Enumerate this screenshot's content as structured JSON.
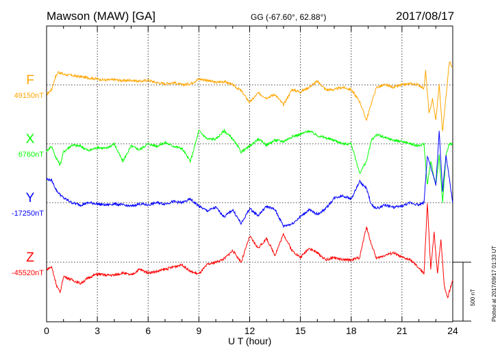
{
  "header": {
    "station": "Mawson (MAW)  [GA]",
    "coords": "GG (-67.60°,  62.88°)",
    "date": "2017/08/17"
  },
  "side_note": "Plotted at 2017/09/17 01:33 UT",
  "scale_label": "500 nT",
  "chart_data": {
    "type": "line",
    "title": "Mawson (MAW)  [GA]",
    "xlabel": "U T (hour)",
    "xlim": [
      0,
      24
    ],
    "xticks": [
      "0",
      "3",
      "6",
      "9",
      "12",
      "15",
      "18",
      "21",
      "24"
    ],
    "grid": true,
    "scale_bar_nT": 500,
    "series": [
      {
        "name": "F",
        "color": "#ffa500",
        "baseline_label": "49150nT",
        "baseline_nT": 49150,
        "points": [
          [
            0,
            -80
          ],
          [
            0.3,
            -40
          ],
          [
            0.5,
            60
          ],
          [
            0.7,
            110
          ],
          [
            1,
            90
          ],
          [
            1.5,
            80
          ],
          [
            2,
            70
          ],
          [
            2.5,
            60
          ],
          [
            3,
            50
          ],
          [
            3.5,
            40
          ],
          [
            4,
            45
          ],
          [
            4.5,
            35
          ],
          [
            5,
            40
          ],
          [
            5.5,
            30
          ],
          [
            6,
            40
          ],
          [
            6.5,
            20
          ],
          [
            7,
            10
          ],
          [
            7.5,
            20
          ],
          [
            8,
            0
          ],
          [
            8.5,
            10
          ],
          [
            9,
            50
          ],
          [
            9.5,
            40
          ],
          [
            10,
            20
          ],
          [
            10.5,
            30
          ],
          [
            11,
            0
          ],
          [
            11.5,
            -50
          ],
          [
            12,
            -150
          ],
          [
            12.5,
            -70
          ],
          [
            13,
            -110
          ],
          [
            13.5,
            -80
          ],
          [
            14,
            -170
          ],
          [
            14.5,
            -40
          ],
          [
            15,
            -60
          ],
          [
            15.5,
            -20
          ],
          [
            16,
            30
          ],
          [
            16.5,
            -40
          ],
          [
            17,
            -40
          ],
          [
            17.5,
            -20
          ],
          [
            18,
            -40
          ],
          [
            18.5,
            -140
          ],
          [
            18.9,
            -300
          ],
          [
            19.2,
            -150
          ],
          [
            19.5,
            -20
          ],
          [
            20,
            0
          ],
          [
            20.5,
            -20
          ],
          [
            21,
            0
          ],
          [
            21.5,
            10
          ],
          [
            22,
            0
          ],
          [
            22.3,
            -30
          ],
          [
            22.4,
            120
          ],
          [
            22.6,
            -250
          ],
          [
            22.8,
            -120
          ],
          [
            23,
            -300
          ],
          [
            23.2,
            0
          ],
          [
            23.4,
            -400
          ],
          [
            23.6,
            -100
          ],
          [
            23.8,
            200
          ],
          [
            24,
            150
          ]
        ]
      },
      {
        "name": "X",
        "color": "#00ff00",
        "baseline_label": "6760nT",
        "baseline_nT": 6760,
        "points": [
          [
            0,
            -60
          ],
          [
            0.3,
            -20
          ],
          [
            0.5,
            -100
          ],
          [
            0.8,
            -180
          ],
          [
            1,
            -70
          ],
          [
            1.5,
            -10
          ],
          [
            2,
            -20
          ],
          [
            2.5,
            -60
          ],
          [
            3,
            -30
          ],
          [
            3.5,
            -40
          ],
          [
            4,
            0
          ],
          [
            4.5,
            -150
          ],
          [
            5,
            -20
          ],
          [
            5.5,
            -50
          ],
          [
            6,
            0
          ],
          [
            6.5,
            -20
          ],
          [
            7,
            10
          ],
          [
            7.5,
            -20
          ],
          [
            8,
            -40
          ],
          [
            8.5,
            -150
          ],
          [
            9,
            110
          ],
          [
            9.5,
            40
          ],
          [
            10,
            40
          ],
          [
            10.5,
            110
          ],
          [
            11,
            40
          ],
          [
            11.5,
            -70
          ],
          [
            12,
            -20
          ],
          [
            12.5,
            40
          ],
          [
            13,
            -10
          ],
          [
            13.5,
            30
          ],
          [
            14,
            20
          ],
          [
            14.5,
            60
          ],
          [
            15,
            80
          ],
          [
            15.5,
            110
          ],
          [
            16,
            70
          ],
          [
            16.5,
            50
          ],
          [
            17,
            30
          ],
          [
            17.5,
            0
          ],
          [
            18,
            0
          ],
          [
            18.5,
            -250
          ],
          [
            18.9,
            -150
          ],
          [
            19.2,
            30
          ],
          [
            19.5,
            80
          ],
          [
            20,
            50
          ],
          [
            20.5,
            30
          ],
          [
            21,
            20
          ],
          [
            21.5,
            0
          ],
          [
            22,
            -20
          ],
          [
            22.3,
            0
          ],
          [
            22.5,
            -350
          ],
          [
            22.7,
            -150
          ],
          [
            23,
            -350
          ],
          [
            23.2,
            -100
          ],
          [
            23.4,
            -500
          ],
          [
            23.6,
            -100
          ],
          [
            23.8,
            0
          ],
          [
            24,
            0
          ]
        ]
      },
      {
        "name": "Y",
        "color": "#0000ff",
        "baseline_label": "-17250nT",
        "baseline_nT": -17250,
        "points": [
          [
            0,
            200
          ],
          [
            0.3,
            190
          ],
          [
            0.6,
            100
          ],
          [
            1,
            40
          ],
          [
            1.5,
            0
          ],
          [
            2,
            -20
          ],
          [
            2.5,
            0
          ],
          [
            3,
            -10
          ],
          [
            3.5,
            -20
          ],
          [
            4,
            -10
          ],
          [
            4.5,
            -20
          ],
          [
            5,
            -30
          ],
          [
            5.5,
            -10
          ],
          [
            6,
            -20
          ],
          [
            6.5,
            0
          ],
          [
            7,
            -10
          ],
          [
            7.5,
            10
          ],
          [
            8,
            0
          ],
          [
            8.5,
            30
          ],
          [
            9,
            -30
          ],
          [
            9.5,
            -70
          ],
          [
            10,
            -40
          ],
          [
            10.5,
            -120
          ],
          [
            11,
            -60
          ],
          [
            11.5,
            -180
          ],
          [
            12,
            -50
          ],
          [
            12.5,
            -110
          ],
          [
            13,
            -30
          ],
          [
            13.5,
            -60
          ],
          [
            14,
            -200
          ],
          [
            14.5,
            -180
          ],
          [
            15,
            -120
          ],
          [
            15.5,
            -60
          ],
          [
            16,
            -100
          ],
          [
            16.5,
            -50
          ],
          [
            17,
            40
          ],
          [
            17.5,
            60
          ],
          [
            18,
            30
          ],
          [
            18.5,
            180
          ],
          [
            18.9,
            120
          ],
          [
            19.2,
            -20
          ],
          [
            19.5,
            -50
          ],
          [
            20,
            -20
          ],
          [
            20.5,
            -40
          ],
          [
            21,
            -30
          ],
          [
            21.5,
            0
          ],
          [
            22,
            -20
          ],
          [
            22.3,
            0
          ],
          [
            22.5,
            400
          ],
          [
            22.7,
            300
          ],
          [
            23,
            150
          ],
          [
            23.2,
            600
          ],
          [
            23.4,
            100
          ],
          [
            23.6,
            400
          ],
          [
            23.8,
            200
          ],
          [
            24,
            0
          ]
        ]
      },
      {
        "name": "Z",
        "color": "#ff0000",
        "baseline_label": "-45520nT",
        "baseline_nT": -45520,
        "points": [
          [
            0,
            -60
          ],
          [
            0.3,
            -40
          ],
          [
            0.6,
            -200
          ],
          [
            0.8,
            -260
          ],
          [
            1,
            -120
          ],
          [
            1.5,
            -150
          ],
          [
            2,
            -180
          ],
          [
            2.5,
            -130
          ],
          [
            3,
            -100
          ],
          [
            3.5,
            -110
          ],
          [
            4,
            -110
          ],
          [
            4.5,
            -90
          ],
          [
            5,
            -110
          ],
          [
            5.5,
            -60
          ],
          [
            6,
            -90
          ],
          [
            6.5,
            -80
          ],
          [
            7,
            -60
          ],
          [
            7.5,
            -40
          ],
          [
            8,
            -20
          ],
          [
            8.5,
            -80
          ],
          [
            9,
            -100
          ],
          [
            9.5,
            -20
          ],
          [
            10,
            0
          ],
          [
            10.5,
            30
          ],
          [
            11,
            100
          ],
          [
            11.5,
            0
          ],
          [
            12,
            220
          ],
          [
            12.5,
            120
          ],
          [
            13,
            200
          ],
          [
            13.5,
            60
          ],
          [
            14,
            240
          ],
          [
            14.5,
            100
          ],
          [
            15,
            40
          ],
          [
            15.5,
            120
          ],
          [
            16,
            80
          ],
          [
            16.5,
            20
          ],
          [
            17,
            40
          ],
          [
            17.5,
            20
          ],
          [
            18,
            20
          ],
          [
            18.5,
            40
          ],
          [
            18.9,
            300
          ],
          [
            19.2,
            150
          ],
          [
            19.5,
            30
          ],
          [
            20,
            60
          ],
          [
            20.5,
            80
          ],
          [
            21,
            40
          ],
          [
            21.5,
            20
          ],
          [
            22,
            -50
          ],
          [
            22.3,
            -100
          ],
          [
            22.5,
            500
          ],
          [
            22.7,
            -60
          ],
          [
            22.9,
            250
          ],
          [
            23.1,
            -100
          ],
          [
            23.3,
            200
          ],
          [
            23.5,
            -200
          ],
          [
            23.7,
            -300
          ],
          [
            24,
            -150
          ]
        ]
      }
    ]
  }
}
